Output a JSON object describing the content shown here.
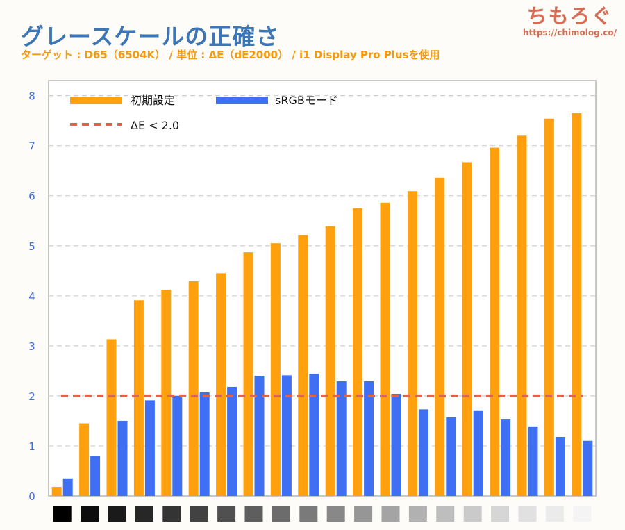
{
  "header": {
    "title": "グレースケールの正確さ",
    "subtitle": "ターゲット : D65（6504K） / 単位 : ΔE（dE2000） / i1 Display Pro Plusを使用"
  },
  "logo": {
    "mark": "ちもろぐ",
    "url": "https://chimolog.co/"
  },
  "chart_data": {
    "type": "bar",
    "title": "グレースケールの正確さ",
    "ylim": [
      0,
      8.3
    ],
    "yticks": [
      "0",
      "1",
      "2",
      "3",
      "4",
      "5",
      "6",
      "7",
      "8"
    ],
    "grid": true,
    "legend_position": "top-left",
    "category_swatches": [
      "#000000",
      "#0d0d0d",
      "#1a1a1a",
      "#272727",
      "#343434",
      "#424242",
      "#505050",
      "#5e5e5e",
      "#6c6c6c",
      "#7a7a7a",
      "#888888",
      "#969696",
      "#a4a4a4",
      "#b1b1b1",
      "#bebebe",
      "#cacaca",
      "#d6d6d6",
      "#e1e1e1",
      "#ebebeb",
      "#f4f4f4"
    ],
    "series": [
      {
        "name": "初期設定",
        "color": "#ffa00f",
        "values": [
          0.18,
          1.45,
          3.13,
          3.91,
          4.12,
          4.29,
          4.45,
          4.87,
          5.05,
          5.21,
          5.39,
          5.75,
          5.86,
          6.09,
          6.36,
          6.67,
          6.96,
          7.2,
          7.54,
          7.65
        ]
      },
      {
        "name": "sRGBモード",
        "color": "#3f6ff2",
        "values": [
          0.35,
          0.8,
          1.5,
          1.91,
          2.0,
          2.07,
          2.18,
          2.4,
          2.41,
          2.44,
          2.29,
          2.29,
          2.04,
          1.73,
          1.57,
          1.71,
          1.54,
          1.39,
          1.18,
          1.1
        ]
      }
    ],
    "reference_line": {
      "label": "ΔE < 2.0",
      "value": 2.0,
      "color": "#d8674e"
    }
  }
}
